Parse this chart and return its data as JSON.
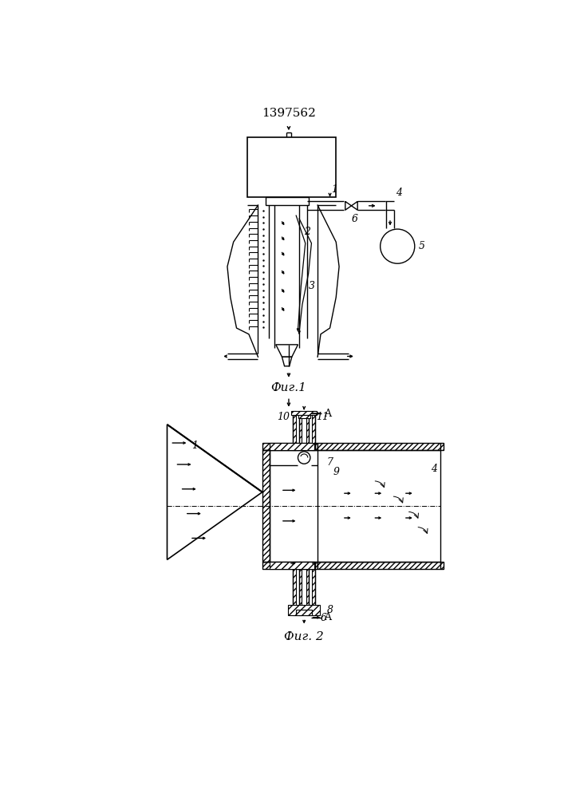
{
  "patent_number": "1397562",
  "fig1_label": "Фиг.1",
  "fig2_label": "Фиг. 2",
  "bg_color": "#ffffff",
  "line_color": "#000000",
  "fig_width": 7.07,
  "fig_height": 10.0
}
